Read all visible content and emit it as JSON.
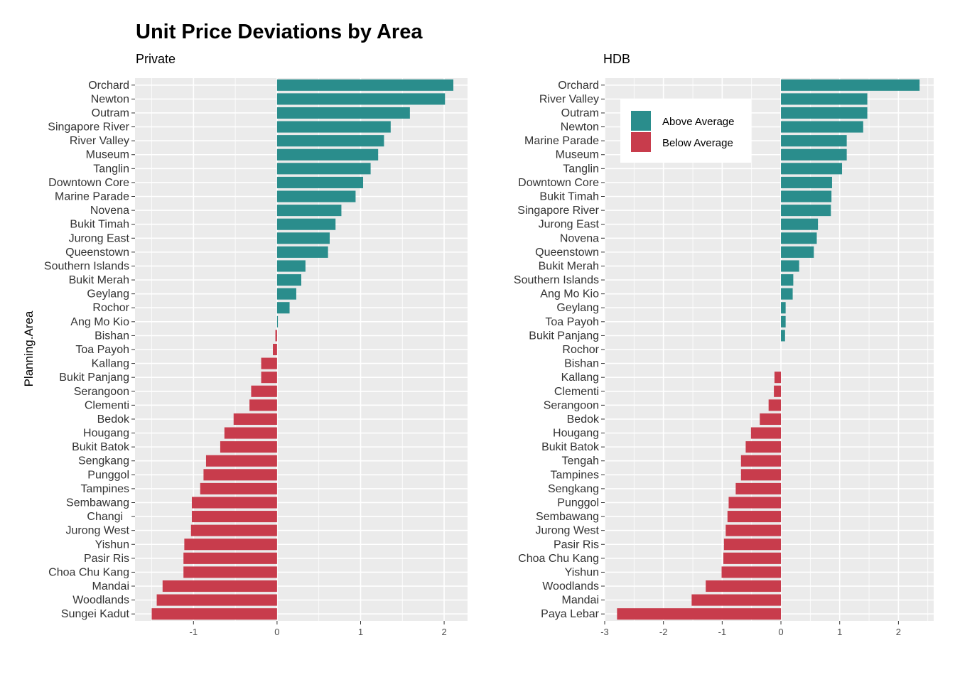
{
  "chart_data": {
    "type": "bar",
    "title": "Unit Price Deviations by Area",
    "ylabel": "Planning.Area",
    "colors": {
      "above": "#2a8d8c",
      "below": "#c83c4c"
    },
    "legend": {
      "placement": "top-right of HDB panel",
      "items": [
        {
          "label": "Above Average",
          "key": "above"
        },
        {
          "label": "Below Average",
          "key": "below"
        }
      ]
    },
    "panels": [
      {
        "subtitle": "Private",
        "xlim": [
          -1.7,
          2.28
        ],
        "xticks": [
          -1,
          0,
          1,
          2
        ],
        "categories": [
          "Orchard",
          "Newton",
          "Outram",
          "Singapore River",
          "River Valley",
          "Museum",
          "Tanglin",
          "Downtown Core",
          "Marine Parade",
          "Novena",
          "Bukit Timah",
          "Jurong East",
          "Queenstown",
          "Southern Islands",
          "Bukit Merah",
          "Geylang",
          "Rochor",
          "Ang Mo Kio",
          "Bishan",
          "Toa Payoh",
          "Kallang",
          "Bukit Panjang",
          "Serangoon",
          "Clementi",
          "Bedok",
          "Hougang",
          "Bukit Batok",
          "Sengkang",
          "Punggol",
          "Tampines",
          "Sembawang",
          "Changi  ",
          "Jurong West",
          "Yishun",
          "Pasir Ris",
          "Choa Chu Kang",
          "Mandai",
          "Woodlands",
          "Sungei Kadut"
        ],
        "values": [
          2.11,
          2.01,
          1.59,
          1.36,
          1.28,
          1.21,
          1.12,
          1.03,
          0.94,
          0.77,
          0.7,
          0.63,
          0.61,
          0.34,
          0.29,
          0.23,
          0.15,
          0.01,
          -0.02,
          -0.05,
          -0.19,
          -0.19,
          -0.31,
          -0.33,
          -0.52,
          -0.63,
          -0.68,
          -0.85,
          -0.88,
          -0.92,
          -1.02,
          -1.02,
          -1.03,
          -1.11,
          -1.12,
          -1.12,
          -1.37,
          -1.44,
          -1.5
        ]
      },
      {
        "subtitle": "HDB",
        "xlim": [
          -3.0,
          2.6
        ],
        "xticks": [
          -3,
          -2,
          -1,
          0,
          1,
          2
        ],
        "categories": [
          "Orchard",
          "River Valley",
          "Outram",
          "Newton",
          "Marine Parade",
          "Museum",
          "Tanglin",
          "Downtown Core",
          "Bukit Timah",
          "Singapore River",
          "Jurong East",
          "Novena",
          "Queenstown",
          "Bukit Merah",
          "Southern Islands",
          "Ang Mo Kio",
          "Geylang",
          "Toa Payoh",
          "Bukit Panjang",
          "Rochor",
          "Bishan",
          "Kallang",
          "Clementi",
          "Serangoon",
          "Bedok",
          "Hougang",
          "Bukit Batok",
          "Tengah",
          "Tampines",
          "Sengkang",
          "Punggol",
          "Sembawang",
          "Jurong West",
          "Pasir Ris",
          "Choa Chu Kang",
          "Yishun",
          "Woodlands",
          "Mandai",
          "Paya Lebar"
        ],
        "values": [
          2.36,
          1.47,
          1.47,
          1.4,
          1.12,
          1.12,
          1.04,
          0.87,
          0.86,
          0.85,
          0.63,
          0.61,
          0.56,
          0.31,
          0.21,
          0.2,
          0.08,
          0.08,
          0.07,
          0.0,
          0.0,
          -0.11,
          -0.12,
          -0.21,
          -0.36,
          -0.51,
          -0.6,
          -0.68,
          -0.68,
          -0.77,
          -0.89,
          -0.91,
          -0.94,
          -0.97,
          -0.98,
          -1.01,
          -1.28,
          -1.52,
          -2.79
        ]
      }
    ]
  }
}
